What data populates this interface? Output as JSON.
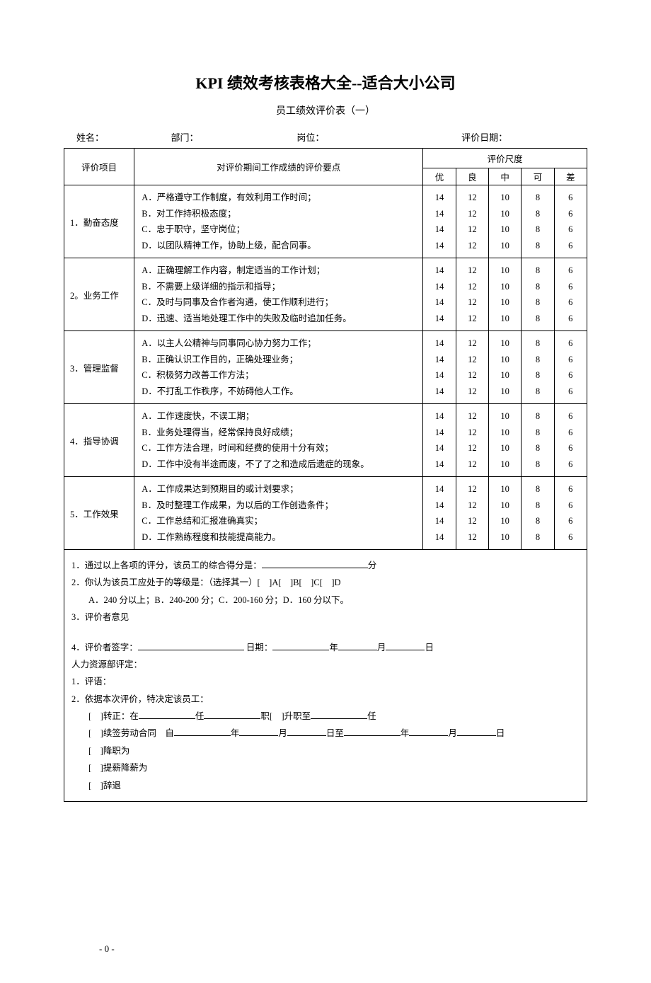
{
  "title": "KPI 绩效考核表格大全--适合大小公司",
  "subtitle": "员工绩效评价表（一）",
  "meta": {
    "name_label": "姓名：",
    "dept_label": "部门：",
    "pos_label": "岗位：",
    "date_label": "评价日期："
  },
  "header": {
    "item": "评价项目",
    "desc": "对评价期间工作成绩的评价要点",
    "scale": "评价尺度",
    "levels": [
      "优",
      "良",
      "中",
      "可",
      "差"
    ]
  },
  "score_values": [
    "14",
    "12",
    "10",
    "8",
    "6"
  ],
  "sections": [
    {
      "name": "1．勤奋态度",
      "lines": [
        "A．严格遵守工作制度，有效利用工作时间；",
        "B．对工作持积极态度；",
        "C．忠于职守，坚守岗位；",
        "D．以团队精神工作，协助上级，配合同事。"
      ]
    },
    {
      "name": "2。业务工作",
      "lines": [
        "A．正确理解工作内容，制定适当的工作计划；",
        "B．不需要上级详细的指示和指导；",
        "C．及时与同事及合作者沟通，使工作顺利进行；",
        "D．迅速、适当地处理工作中的失败及临时追加任务。"
      ]
    },
    {
      "name": "3．管理监督",
      "lines": [
        "A．以主人公精神与同事同心协力努力工作；",
        "B．正确认识工作目的，正确处理业务；",
        "C．积极努力改善工作方法；",
        "D．不打乱工作秩序，不妨碍他人工作。"
      ]
    },
    {
      "name": "4．指导协调",
      "lines": [
        "A．工作速度快，不误工期；",
        "B．业务处理得当，经常保持良好成绩；",
        "C．工作方法合理，时间和经费的使用十分有效；",
        "D．工作中没有半途而废，不了了之和造成后遗症的现象。"
      ]
    },
    {
      "name": "5．工作效果",
      "lines": [
        "A．工作成果达到预期目的或计划要求；",
        "B．及时整理工作成果，为以后的工作创造条件；",
        "C．工作总结和汇报准确真实；",
        "D．工作熟练程度和技能提高能力。"
      ]
    }
  ],
  "summary": {
    "l1a": "1．通过以上各项的评分，该员工的综合得分是：",
    "l1b": "分",
    "l2": "2．你认为该员工应处于的等级是：（选择其一）[　]A[　]B[　]C[　]D",
    "l2sub": "A．240 分以上；B．240-200 分；C．200-160 分；D．160 分以下。",
    "l3": "3．评价者意见",
    "l4a": "4．评价者签字：",
    "l4b": " 日期：",
    "l4c": "年",
    "l4d": "月",
    "l4e": "日",
    "hr": "人力资源部评定：",
    "c1": "1．评语：",
    "c2": "2．依据本次评价，特决定该员工：",
    "opt1a": "[　]转正：在",
    "opt1b": "任",
    "opt1c": "职[　]升职至",
    "opt1d": "任",
    "opt2a": "[　]续签劳动合同　自",
    "opt2b": "年",
    "opt2c": "月",
    "opt2d": "日至",
    "opt2e": "年",
    "opt2f": "月",
    "opt2g": "日",
    "opt3": "[　]降职为",
    "opt4": "[　]提薪降薪为",
    "opt5": "[　]辞退"
  },
  "page_number": "- 0 -",
  "colors": {
    "text": "#000000",
    "background": "#ffffff",
    "border": "#000000"
  }
}
